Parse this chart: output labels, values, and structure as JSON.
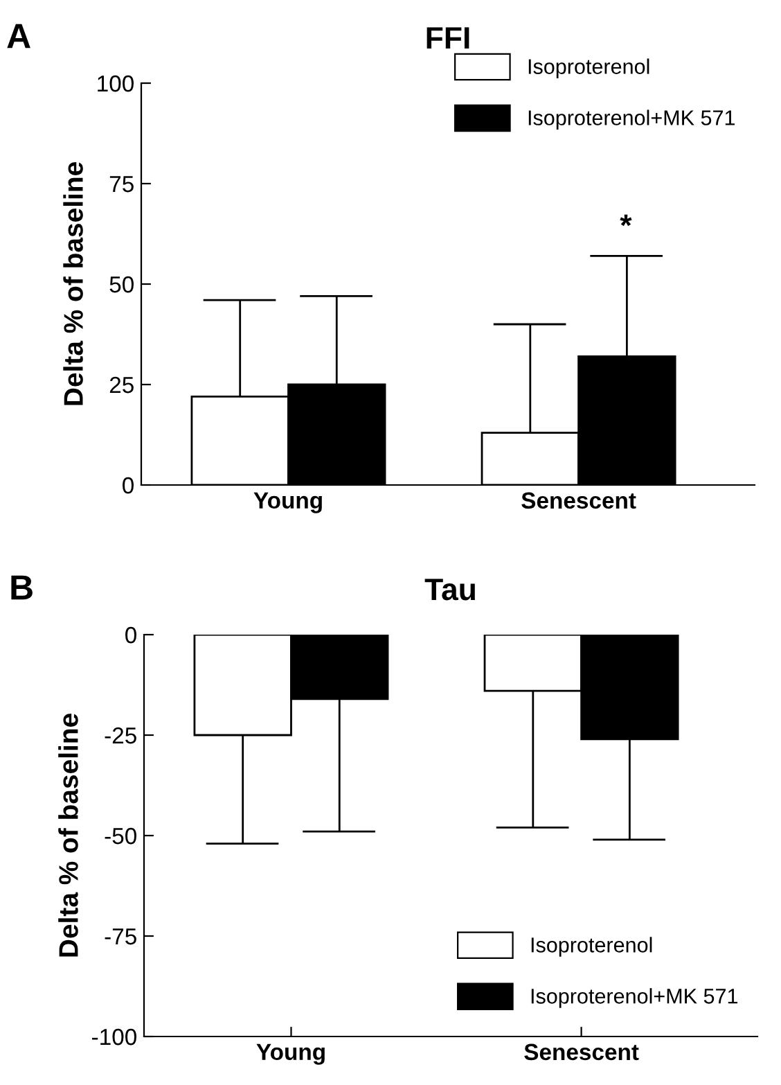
{
  "chart_data": [
    {
      "type": "bar",
      "title": "FFI",
      "ylabel": "Delta % of baseline",
      "categories": [
        "Young",
        "Senescent"
      ],
      "series": [
        {
          "name": "Isoproterenol",
          "color": "#ffffff",
          "values": [
            22,
            13
          ],
          "errors": [
            [
              22,
              46
            ],
            [
              13,
              40
            ]
          ]
        },
        {
          "name": "Isoproterenol+MK 571",
          "color": "#000000",
          "values": [
            25,
            32
          ],
          "errors": [
            [
              25,
              47
            ],
            [
              32,
              57
            ]
          ]
        }
      ],
      "ylim": [
        0,
        100
      ],
      "yticks": [
        0,
        25,
        50,
        75,
        100
      ],
      "grid": false,
      "legend": "top right",
      "annotations": [
        "A",
        "*"
      ]
    },
    {
      "type": "bar",
      "title": "Tau",
      "ylabel": "Delta % of baseline",
      "categories": [
        "Young",
        "Senescent"
      ],
      "series": [
        {
          "name": "Isoproterenol",
          "color": "#ffffff",
          "values": [
            -25,
            -14
          ],
          "errors": [
            [
              -52,
              -25
            ],
            [
              -48,
              -14
            ]
          ]
        },
        {
          "name": "Isoproterenol+MK 571",
          "color": "#000000",
          "values": [
            -16,
            -26
          ],
          "errors": [
            [
              -49,
              -16
            ],
            [
              -51,
              -26
            ]
          ]
        }
      ],
      "ylim": [
        -100,
        0
      ],
      "yticks": [
        -100,
        -75,
        -50,
        -25,
        0
      ],
      "grid": false,
      "legend": "bottom right",
      "annotations": [
        "B"
      ]
    }
  ]
}
